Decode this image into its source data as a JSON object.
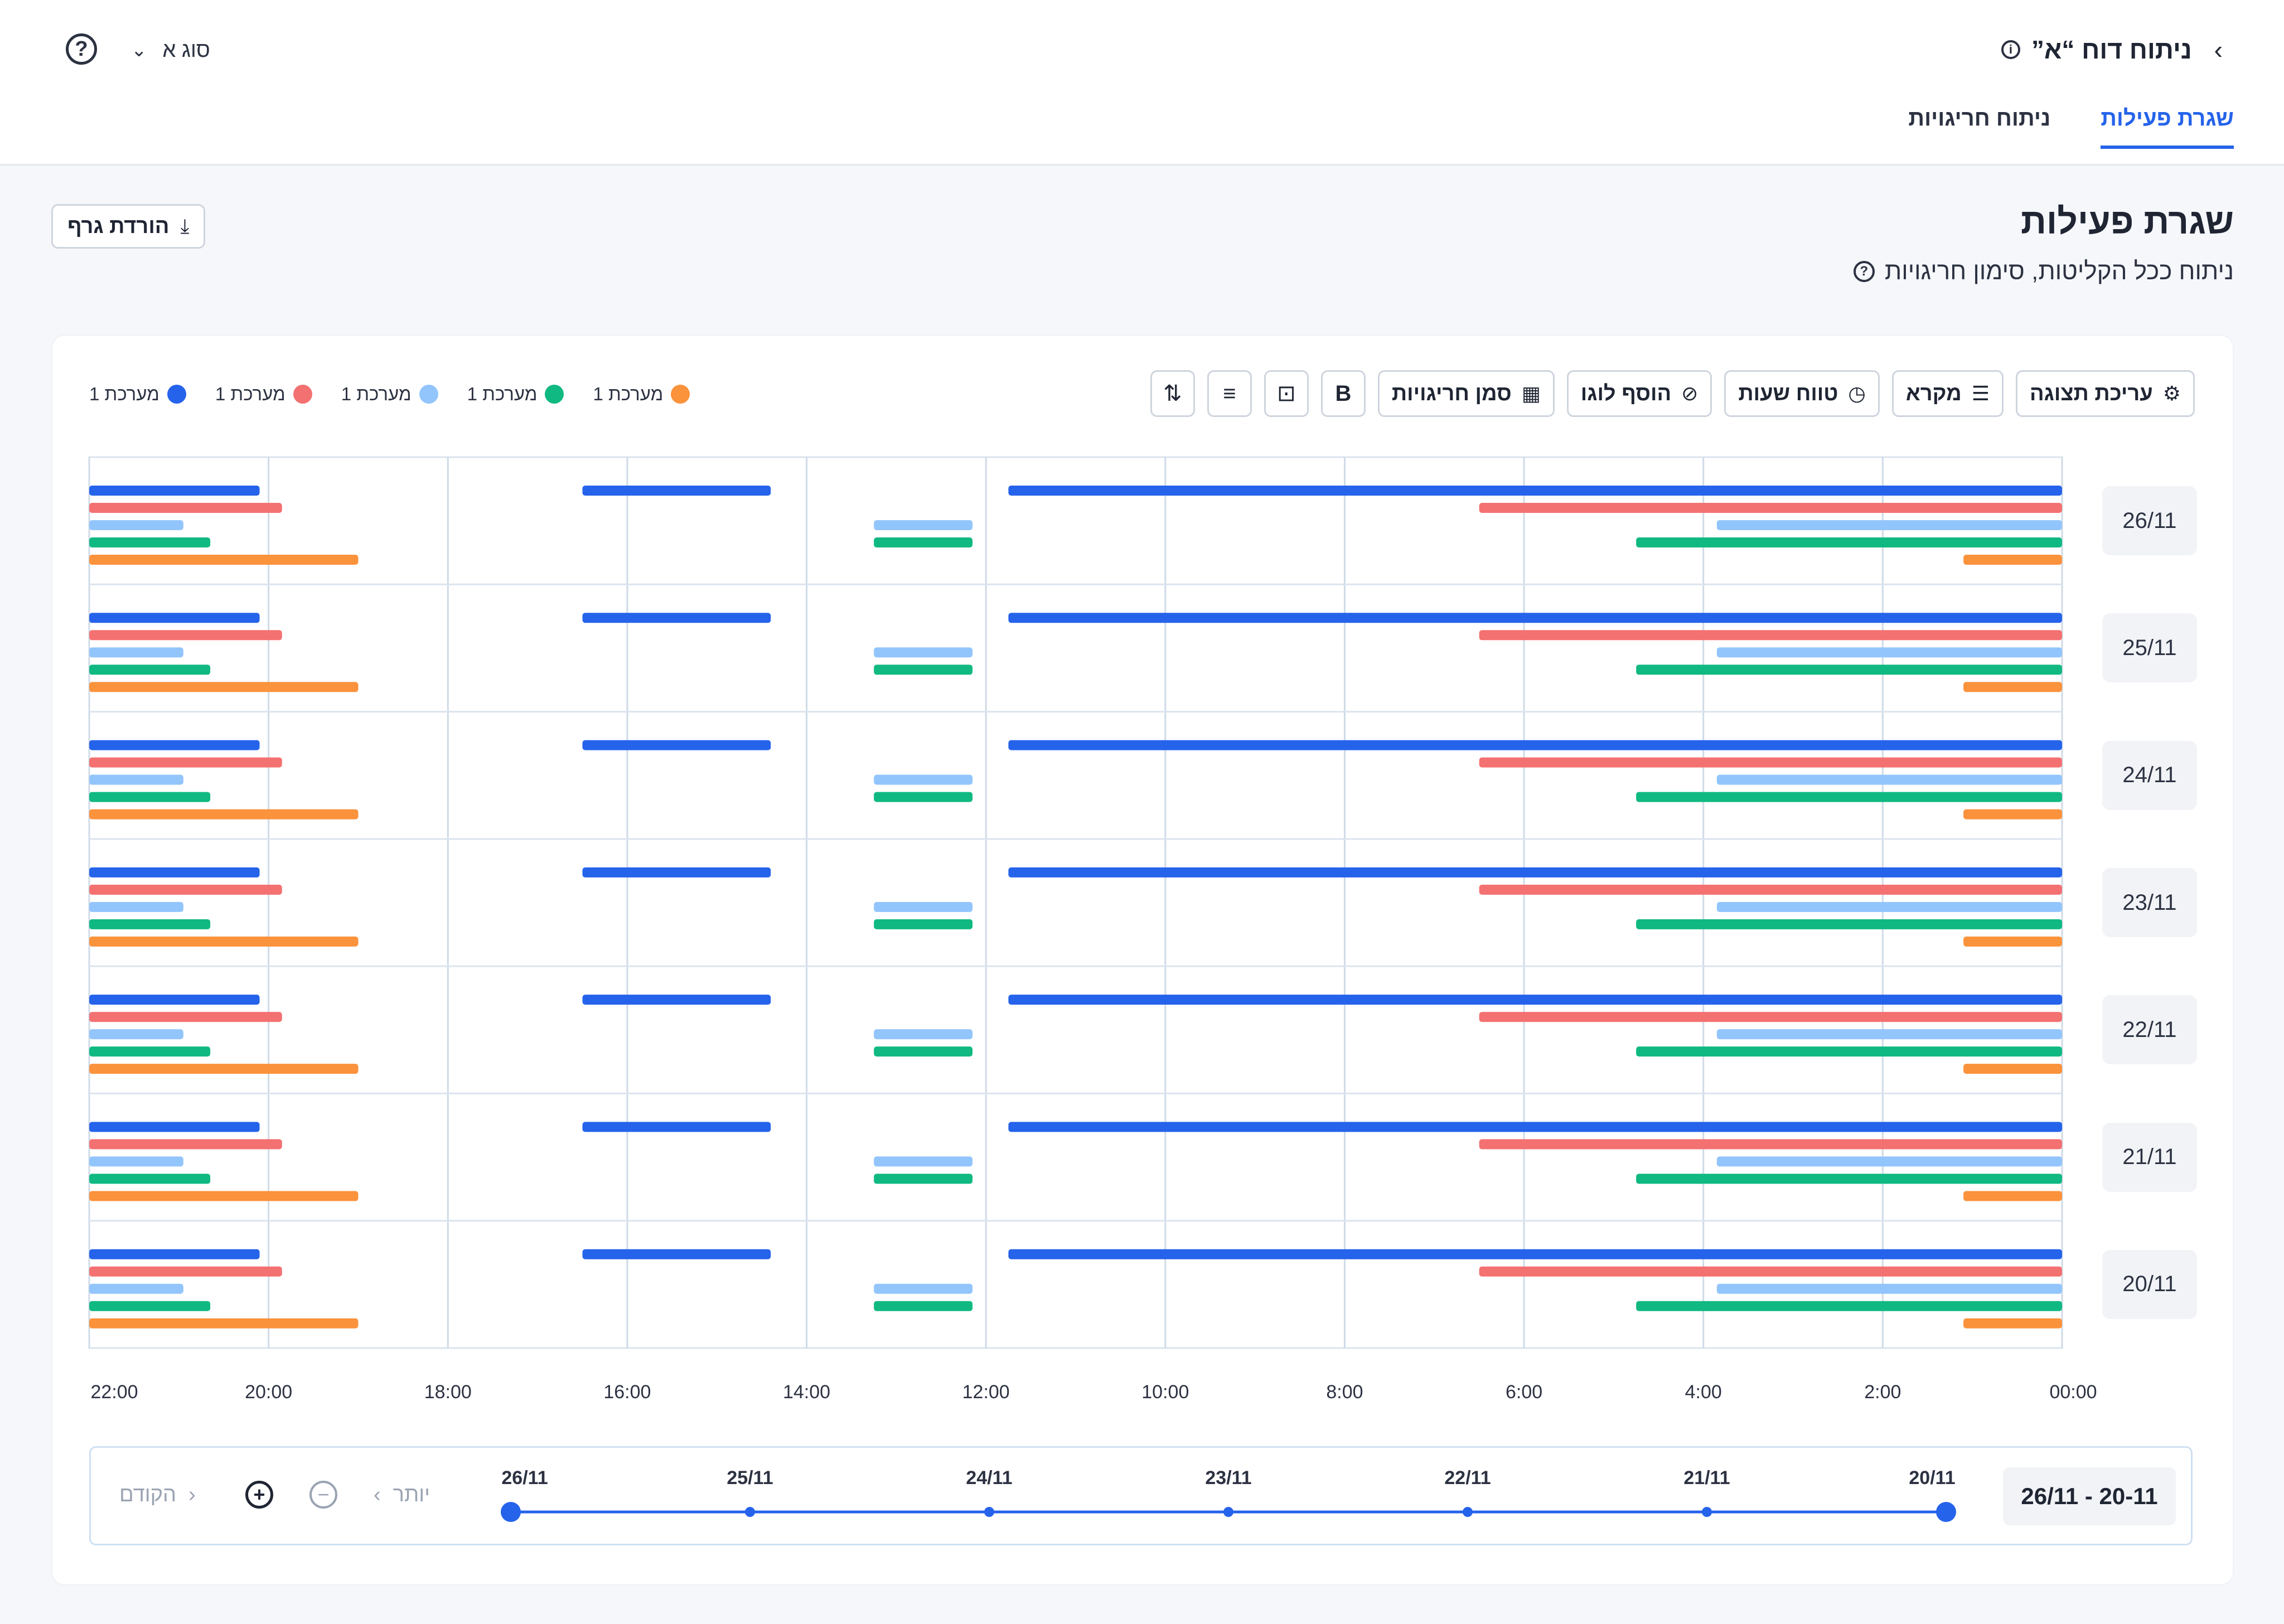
{
  "header": {
    "report_title": "ניתוח דוח “א”",
    "type_select": "סוג א",
    "tabs": [
      "שגרת פעילות",
      "ניתוח חריגויות"
    ]
  },
  "page": {
    "title": "שגרת פעילות",
    "subtitle": "ניתוח ככל הקליטות, סימון חריגויות",
    "download_label": "הורדת גרף"
  },
  "toolbar": {
    "edit_display": "עריכת תצוגה",
    "legend": "מקרא",
    "time_range": "טווח שעות",
    "add_logo": "הוסף לוגו",
    "mark_anomalies": "סמן חריגויות"
  },
  "timeline": {
    "range_label": "26/11 - 20-11",
    "prev_label": "הקודם",
    "more_label": "יותר",
    "dates": [
      "26/11",
      "25/11",
      "24/11",
      "23/11",
      "22/11",
      "21/11",
      "20/11"
    ]
  },
  "colors": {
    "blue": "#2563eb",
    "red": "#f47171",
    "lightblue": "#93c5fd",
    "green": "#10b981",
    "orange": "#fb923c",
    "accent": "#2563eb"
  },
  "chart_data": {
    "type": "bar",
    "orientation": "horizontal-range",
    "x_axis": "time of day, reversed (00:00 right, 22:00 left)",
    "x_ticks": [
      "00:00",
      "2:00",
      "4:00",
      "6:00",
      "8:00",
      "10:00",
      "12:00",
      "14:00",
      "16:00",
      "18:00",
      "20:00",
      "22:00"
    ],
    "xlim_hours": [
      0,
      22
    ],
    "categories": [
      "26/11",
      "25/11",
      "24/11",
      "23/11",
      "22/11",
      "21/11",
      "20/11"
    ],
    "grid": true,
    "legend_position": "top-left",
    "series": [
      {
        "name": "מערכת 1",
        "color": "#2563eb",
        "ranges_hours": [
          [
            0,
            11.75
          ],
          [
            14.4,
            16.5
          ],
          [
            20.1,
            22
          ]
        ]
      },
      {
        "name": "מערכת 1",
        "color": "#f47171",
        "ranges_hours": [
          [
            0,
            6.5
          ],
          [
            19.85,
            22
          ]
        ]
      },
      {
        "name": "מערכת 1",
        "color": "#93c5fd",
        "ranges_hours": [
          [
            0,
            3.85
          ],
          [
            12.15,
            13.25
          ],
          [
            20.95,
            22
          ]
        ]
      },
      {
        "name": "מערכת 1",
        "color": "#10b981",
        "ranges_hours": [
          [
            0,
            4.75
          ],
          [
            12.15,
            13.25
          ],
          [
            20.65,
            22
          ]
        ]
      },
      {
        "name": "מערכת 1",
        "color": "#fb923c",
        "ranges_hours": [
          [
            0,
            1.1
          ],
          [
            19.0,
            22
          ]
        ]
      }
    ]
  }
}
